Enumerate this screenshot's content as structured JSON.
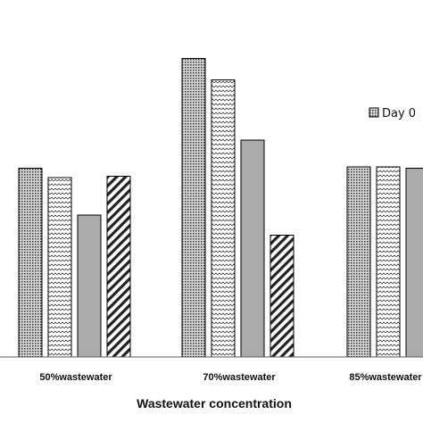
{
  "chart_data": {
    "type": "bar",
    "xlabel": "Wastewater concentration",
    "categories": [
      "50%wastewater",
      "70%wastewater",
      "85%wastewater"
    ],
    "series": [
      {
        "name": "Day 0",
        "pattern": "dots",
        "values": [
          70.5,
          111.5,
          71.0
        ]
      },
      {
        "name": "",
        "pattern": "wave",
        "values": [
          67.0,
          103.5,
          71.0
        ]
      },
      {
        "name": "",
        "pattern": "solid",
        "values": [
          53.0,
          81.0,
          70.5
        ]
      },
      {
        "name": "",
        "pattern": "stripe",
        "values": [
          67.5,
          45.5,
          null
        ]
      }
    ],
    "ylim": [
      0,
      120
    ],
    "legend": {
      "position": "right",
      "visible_entries": [
        "Day 0"
      ]
    },
    "colors": {
      "solid_fill": "#aaaaaa",
      "pattern_ink": "#333333",
      "border": "#000000"
    }
  }
}
